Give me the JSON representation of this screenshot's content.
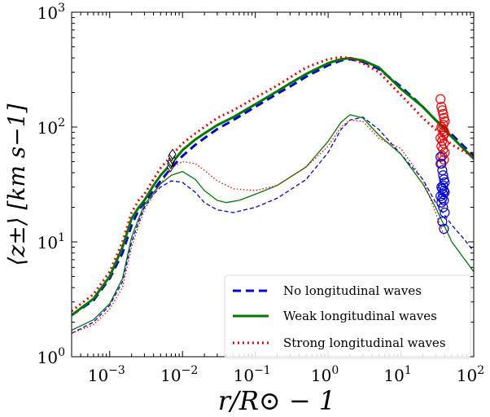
{
  "chart_data": {
    "type": "line",
    "xlabel": "r/R⊙ − 1",
    "ylabel": "⟨z±⟩ [km s−1]",
    "xscale": "log",
    "yscale": "log",
    "xlim": [
      0.0003,
      100
    ],
    "ylim": [
      1,
      1000
    ],
    "grid": false,
    "legend_position": "bottom-right",
    "x_tick_labels": [
      "10−3",
      "10−2",
      "10−1",
      "100",
      "101",
      "102"
    ],
    "y_tick_labels": [
      "100",
      "101",
      "102",
      "103"
    ],
    "series": [
      {
        "name": "No longitudinal waves",
        "color": "#0000dd",
        "style": "dashed",
        "thick": {
          "x": [
            0.0003,
            0.0006,
            0.001,
            0.0015,
            0.002,
            0.0025,
            0.003,
            0.004,
            0.005,
            0.007,
            0.01,
            0.015,
            0.02,
            0.03,
            0.05,
            0.1,
            0.2,
            0.3,
            0.5,
            1,
            1.5,
            2,
            3,
            5,
            10,
            20,
            30,
            50,
            100
          ],
          "y": [
            2.3,
            3.1,
            4.8,
            8,
            14,
            19,
            22,
            28,
            34,
            44,
            56,
            70,
            80,
            96,
            115,
            150,
            195,
            225,
            275,
            345,
            380,
            390,
            370,
            320,
            225,
            150,
            115,
            86,
            56
          ]
        },
        "thin": {
          "x": [
            0.0003,
            0.0006,
            0.001,
            0.0015,
            0.002,
            0.0025,
            0.003,
            0.004,
            0.005,
            0.007,
            0.01,
            0.015,
            0.02,
            0.03,
            0.05,
            0.1,
            0.2,
            0.5,
            1,
            1.5,
            2,
            3,
            5,
            10,
            20,
            30,
            50,
            70,
            100
          ],
          "y": [
            1.6,
            2.0,
            2.8,
            4.5,
            10,
            15,
            20,
            26,
            30,
            34,
            33,
            27,
            22,
            19,
            18,
            20,
            24,
            35,
            60,
            95,
            115,
            122,
            95,
            58,
            35,
            22,
            14,
            11,
            8.3
          ]
        }
      },
      {
        "name": "Weak longitudinal waves",
        "color": "#007a00",
        "style": "solid",
        "thick": {
          "x": [
            0.0003,
            0.0006,
            0.001,
            0.0015,
            0.002,
            0.0025,
            0.003,
            0.004,
            0.005,
            0.007,
            0.01,
            0.015,
            0.02,
            0.03,
            0.05,
            0.1,
            0.2,
            0.3,
            0.5,
            1,
            1.5,
            2,
            3,
            5,
            10,
            20,
            30,
            50,
            100
          ],
          "y": [
            2.3,
            3.2,
            5,
            9,
            16,
            20,
            23,
            31,
            38,
            48,
            63,
            78,
            88,
            104,
            122,
            158,
            205,
            240,
            290,
            360,
            390,
            398,
            380,
            330,
            215,
            150,
            115,
            82,
            53
          ]
        },
        "thin": {
          "x": [
            0.0003,
            0.0006,
            0.001,
            0.0015,
            0.002,
            0.0025,
            0.003,
            0.004,
            0.005,
            0.007,
            0.01,
            0.015,
            0.02,
            0.03,
            0.04,
            0.06,
            0.1,
            0.2,
            0.5,
            1,
            1.5,
            2,
            3,
            5,
            10,
            20,
            30,
            50,
            100
          ],
          "y": [
            1.7,
            2.1,
            2.9,
            4.8,
            11,
            16,
            21,
            27,
            32,
            38,
            41,
            35,
            28,
            23,
            22,
            23,
            26,
            31,
            45,
            75,
            110,
            128,
            120,
            85,
            58,
            32,
            20,
            10,
            5.5
          ]
        }
      },
      {
        "name": "Strong longitudinal waves",
        "color": "#ee0000",
        "style": "dotted",
        "thick": {
          "x": [
            0.0003,
            0.0006,
            0.001,
            0.0015,
            0.002,
            0.0025,
            0.003,
            0.004,
            0.005,
            0.007,
            0.01,
            0.015,
            0.02,
            0.03,
            0.05,
            0.1,
            0.2,
            0.3,
            0.5,
            1,
            1.5,
            2,
            3,
            5,
            10,
            20,
            30,
            50,
            100
          ],
          "y": [
            2.5,
            3.5,
            5.5,
            10,
            18,
            23,
            26,
            35,
            44,
            56,
            72,
            88,
            100,
            120,
            140,
            180,
            230,
            270,
            330,
            390,
            405,
            400,
            360,
            300,
            190,
            120,
            95,
            70,
            55
          ]
        },
        "thin": {
          "x": [
            0.0003,
            0.0006,
            0.001,
            0.0015,
            0.002,
            0.0025,
            0.003,
            0.004,
            0.005,
            0.007,
            0.01,
            0.015,
            0.02,
            0.03,
            0.05,
            0.1,
            0.2,
            0.5,
            1,
            1.5,
            2,
            3,
            5,
            10,
            20,
            30,
            40
          ],
          "y": [
            1.6,
            1.9,
            2.6,
            4,
            9,
            14,
            19,
            26,
            32,
            44,
            50,
            48,
            42,
            34,
            29,
            28,
            31,
            45,
            68,
            100,
            115,
            112,
            80,
            65,
            35,
            18,
            11
          ]
        }
      }
    ],
    "markers": {
      "diamonds": {
        "x": [
          0.0068,
          0.0069,
          0.007,
          0.0072,
          0.0071,
          0.0073
        ],
        "y": [
          45,
          48,
          50,
          53,
          56,
          58
        ]
      },
      "red_circles": {
        "x": [
          35,
          36,
          37,
          38,
          39,
          40,
          38,
          36,
          37,
          39,
          40,
          38,
          35,
          37,
          39,
          36,
          38,
          40,
          37,
          39,
          35
        ],
        "y": [
          175,
          150,
          140,
          130,
          120,
          112,
          105,
          100,
          96,
          92,
          88,
          84,
          80,
          76,
          72,
          68,
          64,
          60,
          56,
          52,
          48
        ]
      },
      "blue_circles": {
        "x": [
          35,
          36,
          37,
          38,
          39,
          40,
          38,
          36,
          37,
          39,
          40,
          38,
          35,
          37,
          39,
          36,
          38,
          40,
          37,
          39
        ],
        "y": [
          55,
          48,
          42,
          38,
          35,
          33,
          31,
          30,
          29,
          28,
          27,
          26,
          25,
          24,
          23,
          22,
          20,
          18,
          15,
          13
        ]
      }
    }
  }
}
